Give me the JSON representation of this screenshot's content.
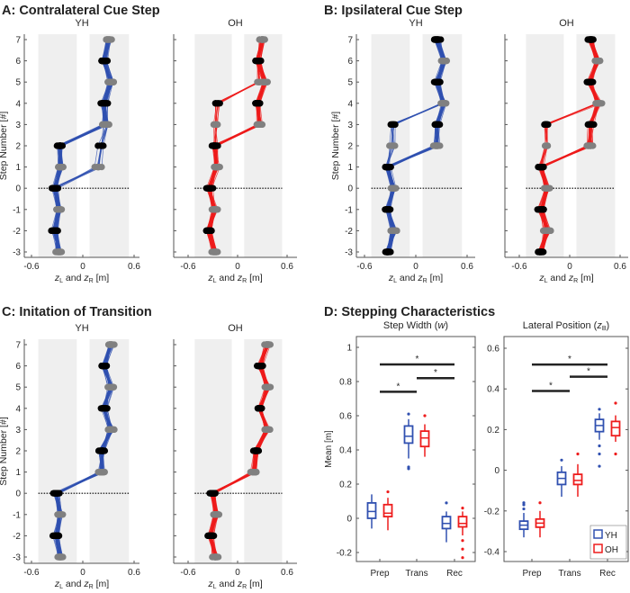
{
  "colors": {
    "YH": "#3050b0",
    "OH": "#ee1c1c",
    "band": "#efefef",
    "grayMarker": "#808080",
    "blackMarker": "#000000"
  },
  "common": {
    "ylabel": "Step Number [#]",
    "xlabel": {
      "z1": "z",
      "s1": "L",
      "mid": " and ",
      "z2": "z",
      "s2": "R",
      "unit": " [m]"
    },
    "xticks": [
      "-0.6",
      "0",
      "0.6"
    ],
    "yticks": [
      "7",
      "6",
      "5",
      "4",
      "3",
      "2",
      "1",
      "0",
      "-1",
      "-2",
      "-3"
    ]
  },
  "chart_data": [
    {
      "type": "line",
      "title": "A: Contralateral Cue Step",
      "xlabel": "zL and zR [m]",
      "ylabel": "Step Number [#]",
      "xlim": [
        -0.6,
        0.6
      ],
      "ylim": [
        -3,
        7
      ],
      "steps": [
        -3,
        -2,
        -1,
        0,
        1,
        2,
        3,
        4,
        5,
        6,
        7
      ],
      "marker_colors": [
        "gray",
        "black",
        "gray",
        "black",
        "gray",
        "black",
        "gray",
        "black",
        "gray",
        "black",
        "gray"
      ],
      "series": [
        {
          "name": "YH",
          "main": [
            -0.28,
            -0.33,
            -0.28,
            -0.33,
            -0.26,
            -0.27,
            0.27,
            0.25,
            0.33,
            0.25,
            0.3
          ],
          "alt": [
            -0.28,
            -0.33,
            -0.28,
            -0.33,
            0.18,
            0.22,
            0.28,
            0.25,
            0.33,
            0.25,
            0.3
          ],
          "alt_fraction": 0.2
        },
        {
          "name": "OH",
          "main": [
            -0.28,
            -0.35,
            -0.28,
            -0.34,
            -0.26,
            -0.28,
            0.27,
            0.25,
            0.33,
            0.25,
            0.3
          ],
          "alt": [
            -0.28,
            -0.35,
            -0.28,
            -0.34,
            -0.26,
            -0.28,
            -0.27,
            -0.25,
            0.25,
            0.25,
            0.3
          ],
          "alt_fraction": 0.2
        }
      ]
    },
    {
      "type": "line",
      "title": "B: Ipsilateral Cue Step",
      "xlabel": "zL and zR [m]",
      "ylabel": "Step Number [#]",
      "xlim": [
        -0.6,
        0.6
      ],
      "ylim": [
        -3,
        7
      ],
      "steps": [
        -3,
        -2,
        -1,
        0,
        1,
        2,
        3,
        4,
        5,
        6,
        7
      ],
      "marker_colors": [
        "black",
        "gray",
        "black",
        "gray",
        "black",
        "gray",
        "black",
        "gray",
        "black",
        "gray",
        "black"
      ],
      "series": [
        {
          "name": "YH",
          "main": [
            -0.33,
            -0.26,
            -0.33,
            -0.26,
            -0.33,
            0.24,
            0.25,
            0.33,
            0.25,
            0.33,
            0.25
          ],
          "alt": [
            -0.33,
            -0.26,
            -0.33,
            -0.26,
            -0.33,
            -0.27,
            -0.27,
            0.33,
            0.25,
            0.33,
            0.25
          ],
          "alt_fraction": 0.2
        },
        {
          "name": "OH",
          "main": [
            -0.35,
            -0.27,
            -0.34,
            -0.27,
            -0.34,
            0.24,
            0.25,
            0.34,
            0.24,
            0.33,
            0.25
          ],
          "alt": [
            -0.35,
            -0.27,
            -0.34,
            -0.27,
            -0.34,
            -0.28,
            -0.28,
            0.34,
            0.24,
            0.33,
            0.25
          ],
          "alt_fraction": 0.25
        }
      ]
    },
    {
      "type": "line",
      "title": "C: Initation of Transition",
      "xlabel": "zL and zR [m]",
      "ylabel": "Step Number [#]",
      "xlim": [
        -0.6,
        0.6
      ],
      "ylim": [
        -3,
        7
      ],
      "steps": [
        -3,
        -2,
        -1,
        0,
        1,
        2,
        3,
        4,
        5,
        6,
        7
      ],
      "marker_colors": [
        "gray",
        "black",
        "gray",
        "black",
        "gray",
        "black",
        "gray",
        "black",
        "gray",
        "black",
        "gray"
      ],
      "series": [
        {
          "name": "YH",
          "main": [
            -0.26,
            -0.31,
            -0.26,
            -0.31,
            0.22,
            0.22,
            0.33,
            0.25,
            0.33,
            0.25,
            0.33
          ],
          "alt": [
            -0.26,
            -0.31,
            -0.26,
            -0.31,
            0.22,
            0.22,
            0.33,
            0.25,
            0.33,
            0.25,
            0.33
          ],
          "alt_fraction": 0
        },
        {
          "name": "OH",
          "main": [
            -0.27,
            -0.33,
            -0.26,
            -0.3,
            0.2,
            0.23,
            0.36,
            0.27,
            0.36,
            0.27,
            0.36
          ],
          "alt": [
            -0.27,
            -0.33,
            -0.26,
            -0.3,
            0.2,
            0.23,
            0.36,
            0.27,
            0.36,
            0.27,
            0.36
          ],
          "alt_fraction": 0
        }
      ]
    },
    {
      "type": "box",
      "title": "D: Stepping Characteristics",
      "categories": [
        "Prep",
        "Trans",
        "Rec"
      ],
      "legend": [
        "YH",
        "OH"
      ],
      "legend_placement": "bottom-right",
      "subplots": [
        {
          "title_main": "Step Width (",
          "title_var": "w",
          "title_sub": "",
          "title_end": ")",
          "ylabel": "Mean [m]",
          "ylim": [
            -0.25,
            1.05
          ],
          "yticks": [
            1,
            0.8,
            0.6,
            0.4,
            0.2,
            0,
            -0.2
          ],
          "significance": [
            {
              "from": "Prep",
              "to": "Trans",
              "y": 0.74,
              "label": "*"
            },
            {
              "from": "Trans",
              "to": "Rec",
              "y": 0.82,
              "label": "*"
            },
            {
              "from": "Prep",
              "to": "Rec",
              "y": 0.9,
              "label": "*"
            }
          ],
          "series": [
            {
              "name": "YH",
              "boxes": [
                {
                  "min": -0.06,
                  "q1": 0.0,
                  "median": 0.04,
                  "q3": 0.09,
                  "max": 0.14,
                  "outliers": []
                },
                {
                  "min": 0.35,
                  "q1": 0.44,
                  "median": 0.48,
                  "q3": 0.54,
                  "max": 0.58,
                  "outliers": [
                    0.3,
                    0.29,
                    0.61
                  ]
                },
                {
                  "min": -0.14,
                  "q1": -0.06,
                  "median": -0.03,
                  "q3": 0.01,
                  "max": 0.04,
                  "outliers": [
                    0.09
                  ]
                }
              ]
            },
            {
              "name": "OH",
              "boxes": [
                {
                  "min": -0.07,
                  "q1": 0.01,
                  "median": 0.03,
                  "q3": 0.08,
                  "max": 0.12,
                  "outliers": [
                    0.155
                  ]
                },
                {
                  "min": 0.36,
                  "q1": 0.42,
                  "median": 0.47,
                  "q3": 0.51,
                  "max": 0.55,
                  "outliers": [
                    0.6
                  ]
                },
                {
                  "min": -0.1,
                  "q1": -0.05,
                  "median": -0.03,
                  "q3": 0.01,
                  "max": 0.04,
                  "outliers": [
                    0.06,
                    -0.13,
                    -0.18,
                    -0.23
                  ]
                }
              ]
            }
          ]
        },
        {
          "title_main": "Lateral Position (",
          "title_var": "z",
          "title_sub": "B",
          "title_end": ")",
          "ylabel": "",
          "ylim": [
            -0.44,
            0.66
          ],
          "yticks": [
            0.6,
            0.4,
            0.2,
            0,
            -0.2,
            -0.4
          ],
          "significance": [
            {
              "from": "Prep",
              "to": "Trans",
              "y": 0.39,
              "label": "*"
            },
            {
              "from": "Trans",
              "to": "Rec",
              "y": 0.46,
              "label": "*"
            },
            {
              "from": "Prep",
              "to": "Rec",
              "y": 0.52,
              "label": "*"
            }
          ],
          "series": [
            {
              "name": "YH",
              "boxes": [
                {
                  "min": -0.33,
                  "q1": -0.29,
                  "median": -0.27,
                  "q3": -0.25,
                  "max": -0.21,
                  "outliers": [
                    -0.19,
                    -0.17,
                    -0.16
                  ]
                },
                {
                  "min": -0.13,
                  "q1": -0.07,
                  "median": -0.04,
                  "q3": -0.01,
                  "max": 0.02,
                  "outliers": [
                    0.05
                  ]
                },
                {
                  "min": 0.15,
                  "q1": 0.19,
                  "median": 0.22,
                  "q3": 0.25,
                  "max": 0.28,
                  "outliers": [
                    0.3,
                    0.12,
                    0.08,
                    0.02
                  ]
                }
              ]
            },
            {
              "name": "OH",
              "boxes": [
                {
                  "min": -0.33,
                  "q1": -0.28,
                  "median": -0.26,
                  "q3": -0.24,
                  "max": -0.2,
                  "outliers": [
                    -0.16
                  ]
                },
                {
                  "min": -0.13,
                  "q1": -0.07,
                  "median": -0.05,
                  "q3": -0.02,
                  "max": 0.03,
                  "outliers": [
                    0.08
                  ]
                },
                {
                  "min": 0.14,
                  "q1": 0.17,
                  "median": 0.21,
                  "q3": 0.24,
                  "max": 0.27,
                  "outliers": [
                    0.33,
                    0.08
                  ]
                }
              ]
            }
          ]
        }
      ]
    }
  ]
}
